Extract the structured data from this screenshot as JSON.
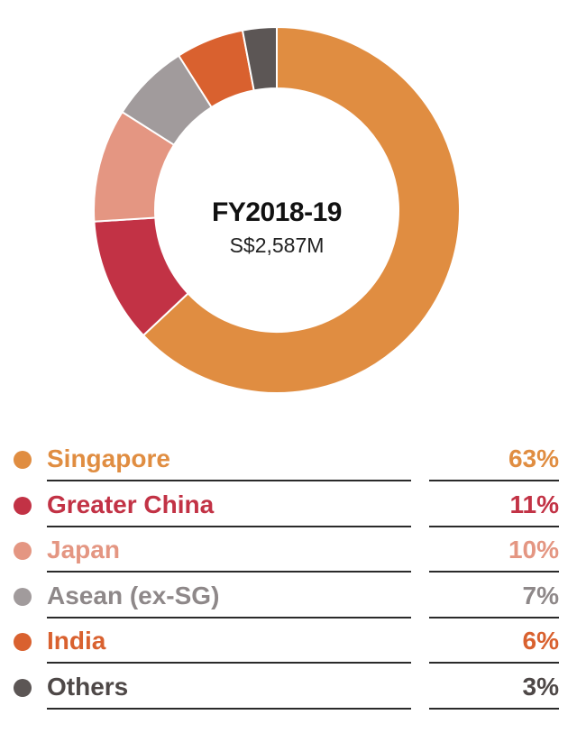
{
  "chart_data": {
    "type": "pie",
    "variant": "donut",
    "center_title": "FY2018-19",
    "center_subtitle": "S$2,587M",
    "categories": [
      "Singapore",
      "Greater China",
      "Japan",
      "Asean (ex-SG)",
      "India",
      "Others"
    ],
    "values": [
      63,
      11,
      10,
      7,
      6,
      3
    ],
    "value_labels": [
      "63%",
      "11%",
      "10%",
      "7%",
      "6%",
      "3%"
    ],
    "colors": [
      "#E08D41",
      "#C23245",
      "#E49682",
      "#A19B9C",
      "#D9612F",
      "#5C5655"
    ],
    "label_colors": [
      "#E08D41",
      "#C23245",
      "#E49682",
      "#8E8889",
      "#D9612F",
      "#4E4847"
    ],
    "value_colors": [
      "#E08D41",
      "#C23245",
      "#E49682",
      "#8E8889",
      "#D9612F",
      "#4E4847"
    ],
    "legend_placement": "bottom",
    "start_angle_deg": 0,
    "direction": "clockwise"
  }
}
